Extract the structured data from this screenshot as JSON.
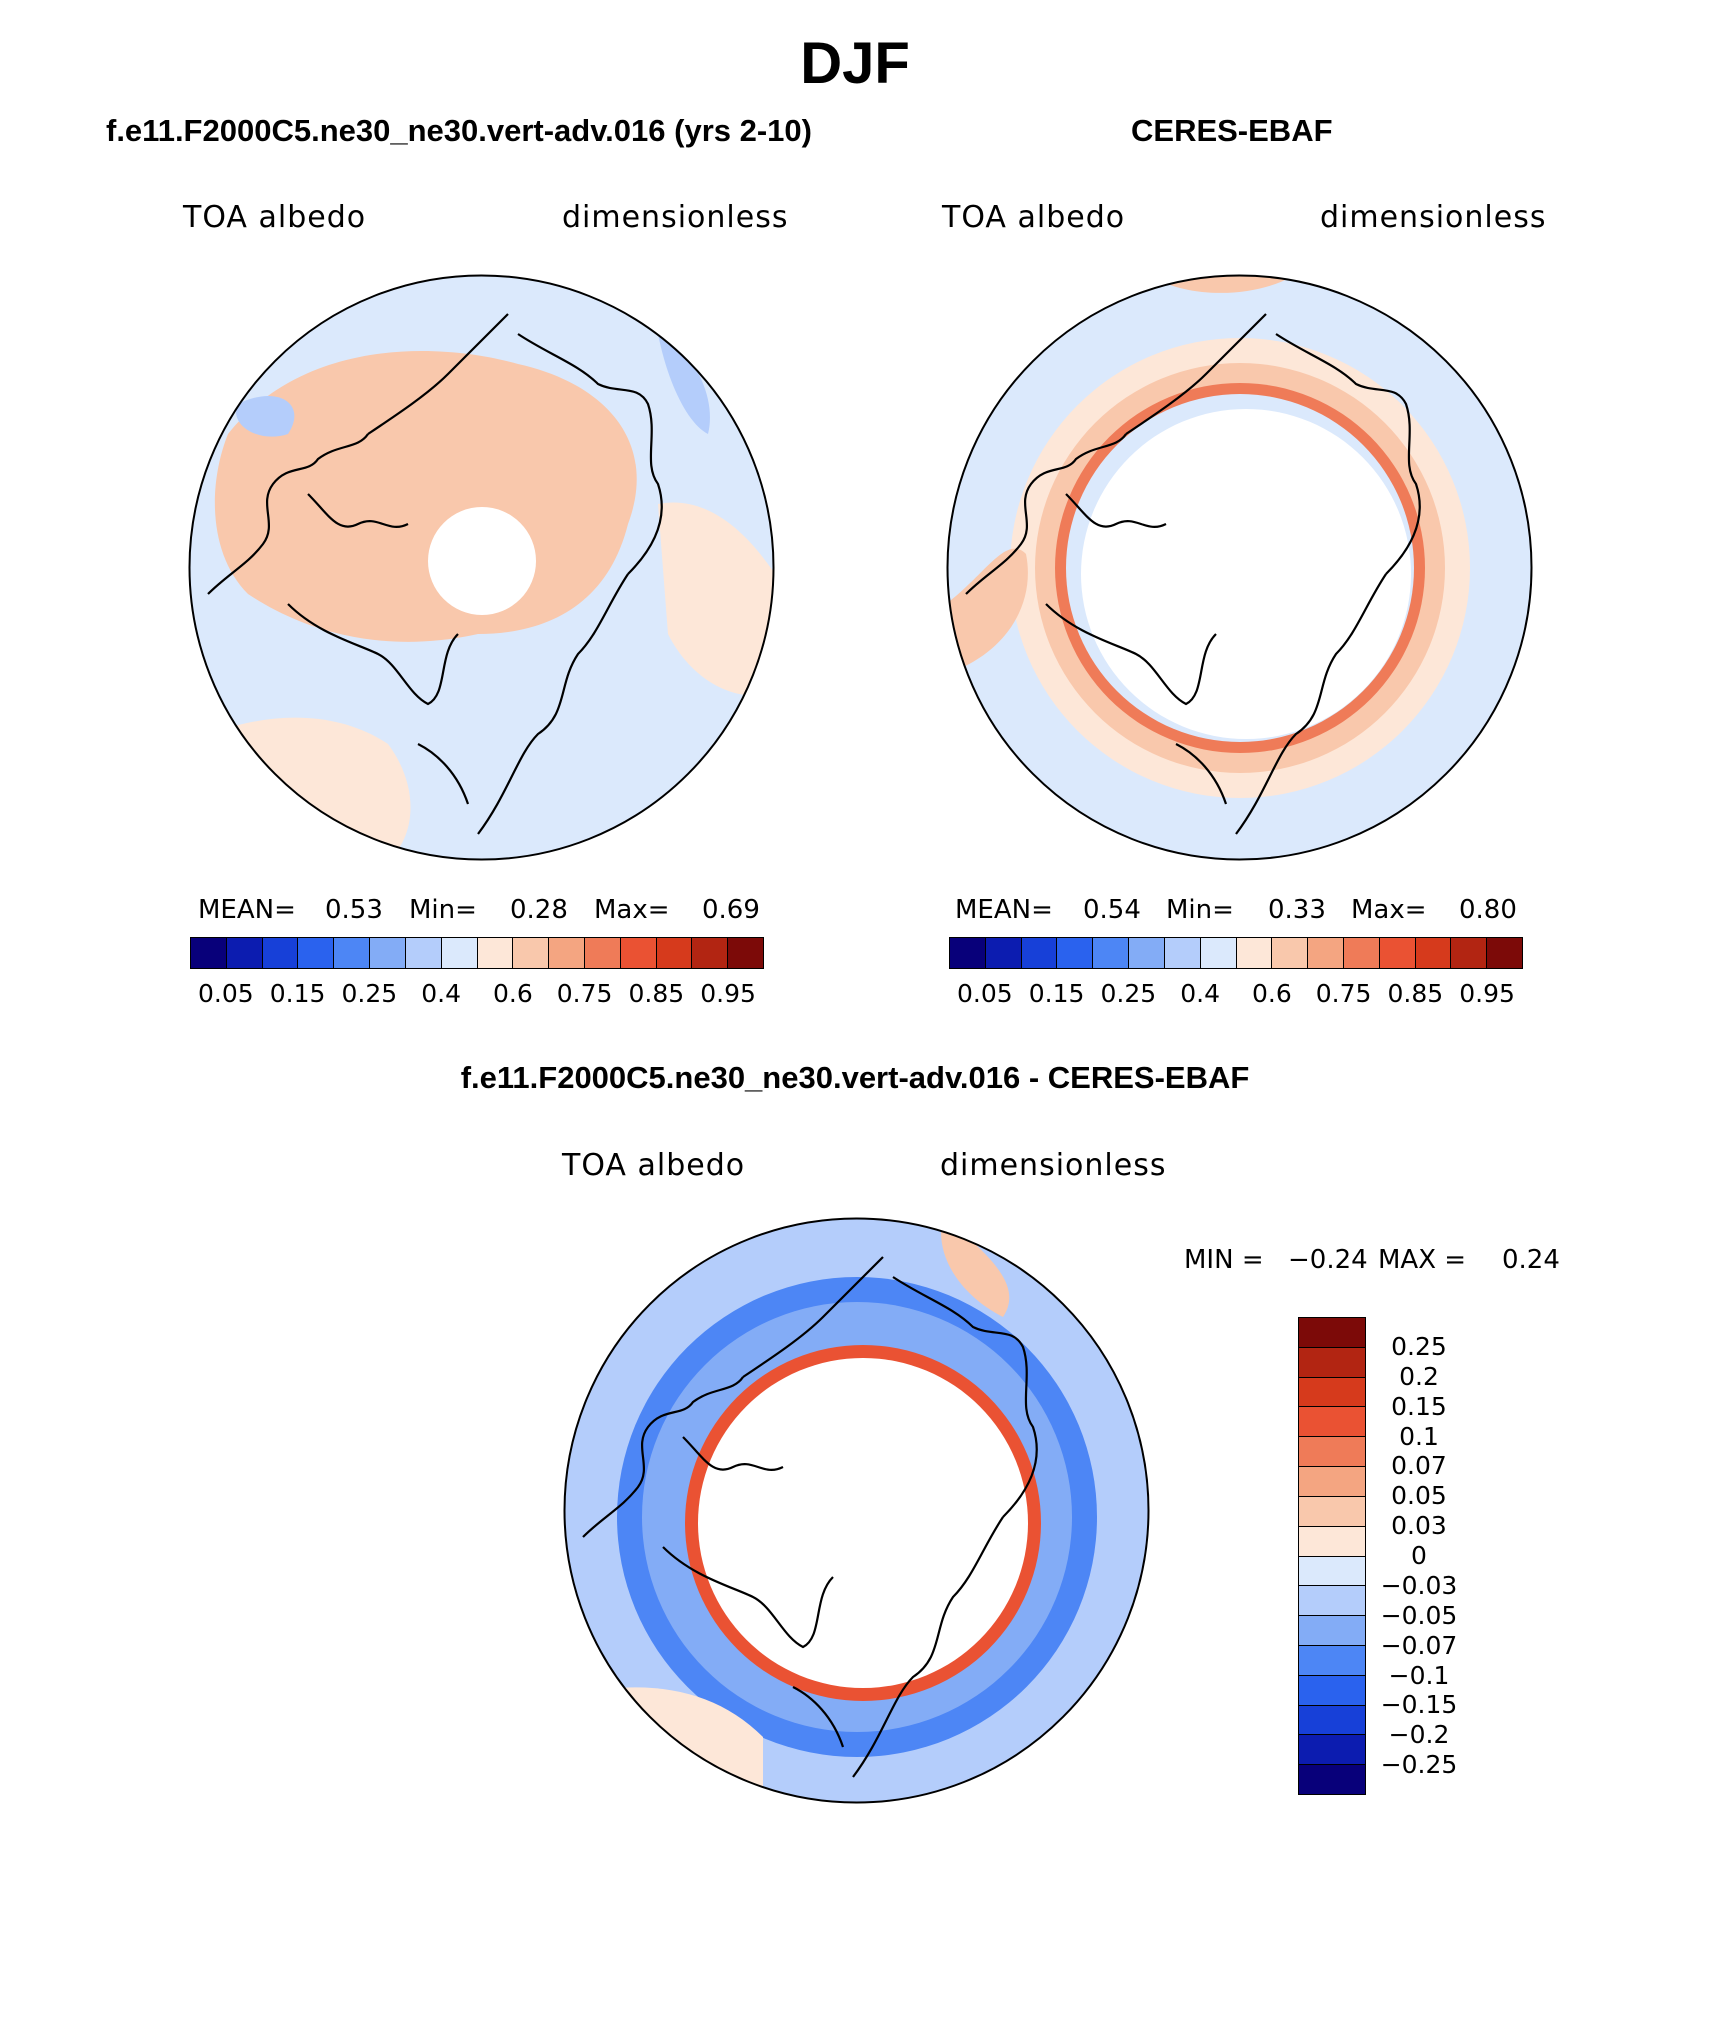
{
  "main_title": "DJF",
  "colors": {
    "seq": [
      "#08007a",
      "#0c1cb0",
      "#1740d8",
      "#2a62ee",
      "#4d86f5",
      "#83acf6",
      "#b4cdfb",
      "#dbe9fc",
      "#fde7d8",
      "#f9c8ac",
      "#f4a581",
      "#ef7b58",
      "#ea5233",
      "#d63a1c",
      "#b22512",
      "#7c0a08"
    ],
    "diff": [
      "#7c0a08",
      "#b22512",
      "#d63a1c",
      "#ea5233",
      "#ef7b58",
      "#f4a581",
      "#f9c8ac",
      "#fde7d8",
      "#dbe9fc",
      "#b4cdfb",
      "#83acf6",
      "#4d86f5",
      "#2a62ee",
      "#1740d8",
      "#0c1cb0",
      "#08007a"
    ]
  },
  "panels": {
    "model": {
      "title": "f.e11.F2000C5.ne30_ne30.vert-adv.016 (yrs 2-10)",
      "var": "TOA albedo",
      "units": "dimensionless",
      "mean_label": "MEAN=",
      "mean": "0.53",
      "min_label": "Min=",
      "min": "0.28",
      "max_label": "Max=",
      "max": "0.69",
      "ticks": [
        "0.05",
        "0.15",
        "0.25",
        "0.4",
        "0.6",
        "0.75",
        "0.85",
        "0.95"
      ]
    },
    "obs": {
      "title": "CERES-EBAF",
      "var": "TOA albedo",
      "units": "dimensionless",
      "mean_label": "MEAN=",
      "mean": "0.54",
      "min_label": "Min=",
      "min": "0.33",
      "max_label": "Max=",
      "max": "0.80",
      "ticks": [
        "0.05",
        "0.15",
        "0.25",
        "0.4",
        "0.6",
        "0.75",
        "0.85",
        "0.95"
      ]
    },
    "diff": {
      "title": "f.e11.F2000C5.ne30_ne30.vert-adv.016 - CERES-EBAF",
      "var": "TOA albedo",
      "units": "dimensionless",
      "min_label": "MIN =",
      "min": "−0.24",
      "max_label": "MAX =",
      "max": "0.24",
      "ticks": [
        "0.25",
        "0.2",
        "0.15",
        "0.1",
        "0.07",
        "0.05",
        "0.03",
        "0",
        "−0.03",
        "−0.05",
        "−0.07",
        "−0.1",
        "−0.15",
        "−0.2",
        "−0.25"
      ]
    }
  }
}
